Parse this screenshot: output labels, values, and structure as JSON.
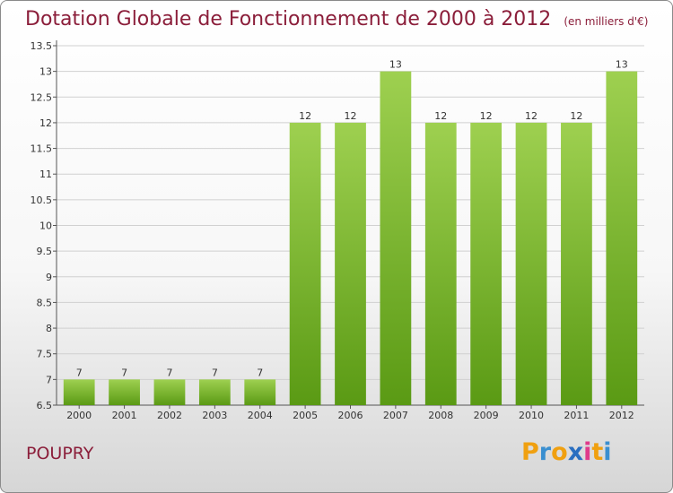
{
  "title": "Dotation Globale de Fonctionnement de 2000 à 2012",
  "subtitle": "(en milliers d'€)",
  "commune": "POUPRY",
  "logo": {
    "letters": [
      "P",
      "r",
      "o",
      "x",
      "i",
      "t",
      "i"
    ],
    "colors": [
      "#f0a010",
      "#3a8fd0",
      "#f0a010",
      "#2a6fc0",
      "#e03a8a",
      "#f0a010",
      "#3a8fd0"
    ]
  },
  "colors": {
    "bar_top": "#9ed050",
    "bar_bottom": "#5a9a14",
    "title": "#8b1e3a"
  },
  "chart_data": {
    "type": "bar",
    "categories": [
      "2000",
      "2001",
      "2002",
      "2003",
      "2004",
      "2005",
      "2006",
      "2007",
      "2008",
      "2009",
      "2010",
      "2011",
      "2012"
    ],
    "values": [
      7,
      7,
      7,
      7,
      7,
      12,
      12,
      13,
      12,
      12,
      12,
      12,
      13
    ],
    "data_labels": [
      "7",
      "7",
      "7",
      "7",
      "7",
      "12",
      "12",
      "13",
      "12",
      "12",
      "12",
      "12",
      "13"
    ],
    "ylim": [
      6.5,
      13.5
    ],
    "yticks": [
      6.5,
      7,
      7.5,
      8,
      8.5,
      9,
      9.5,
      10,
      10.5,
      11,
      11.5,
      12,
      12.5,
      13,
      13.5
    ],
    "ytick_labels": [
      "6.5",
      "7",
      "7.5",
      "8",
      "8.5",
      "9",
      "9.5",
      "10",
      "10.5",
      "11",
      "11.5",
      "12",
      "12.5",
      "13",
      "13.5"
    ],
    "grid": true,
    "xlabel": "",
    "ylabel": ""
  }
}
